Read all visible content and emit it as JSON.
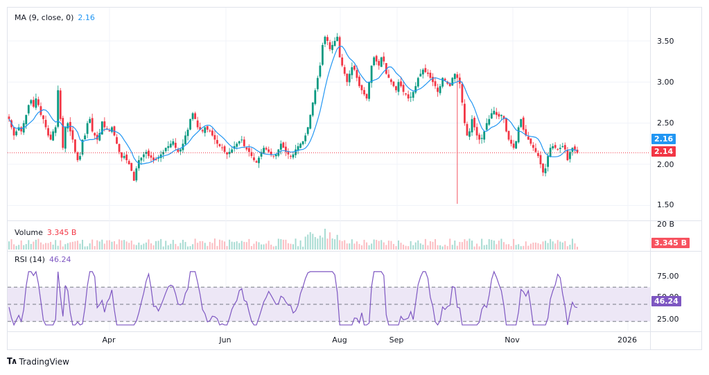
{
  "legend": {
    "ma_label": "MA (9, close, 0)",
    "ma_value": "2.16",
    "volume_label": "Volume",
    "volume_value": "3.345 B",
    "rsi_label": "RSI (14)",
    "rsi_value": "46.24"
  },
  "price_axis": {
    "ticks": [
      "3.50",
      "3.00",
      "2.50",
      "2.00",
      "1.50"
    ],
    "ma_tag": "2.16",
    "last_price_tag": "2.14"
  },
  "volume_axis": {
    "tick": "20 B",
    "volume_tag": "3.345 B"
  },
  "rsi_axis": {
    "ticks": [
      "75.00",
      "50.00",
      "25.00"
    ],
    "rsi_tag": "46.24"
  },
  "time_axis": {
    "labels": [
      "Apr",
      "Jun",
      "Aug",
      "Sep",
      "Nov",
      "2026"
    ]
  },
  "branding": {
    "logo_text": "TradingView"
  },
  "colors": {
    "up": "#089981",
    "down": "#f23645",
    "ma": "#2196f3",
    "rsi": "#7e57c2",
    "rsi_band": "#ede7f6",
    "last_price_line": "#f23645",
    "volume_up": "#a7dbd2",
    "volume_down": "#fbbcc1"
  },
  "chart_data": [
    {
      "type": "candlestick",
      "title": "Price with MA (9, close, 0)",
      "ylim": [
        1.35,
        3.75
      ],
      "y_ticks": [
        1.5,
        2.0,
        2.5,
        3.0,
        3.5
      ],
      "x_labels": [
        "Apr",
        "Jun",
        "Aug",
        "Sep",
        "Nov",
        "2026"
      ],
      "last_price": 2.14,
      "ma_last": 2.16,
      "close_series": [
        2.55,
        2.45,
        2.35,
        2.4,
        2.45,
        2.4,
        2.5,
        2.6,
        2.72,
        2.78,
        2.7,
        2.8,
        2.72,
        2.6,
        2.55,
        2.45,
        2.35,
        2.3,
        2.4,
        2.45,
        2.9,
        2.55,
        2.2,
        2.45,
        2.5,
        2.4,
        2.3,
        2.15,
        2.05,
        2.1,
        2.3,
        2.35,
        2.5,
        2.55,
        2.4,
        2.35,
        2.3,
        2.38,
        2.52,
        2.45,
        2.42,
        2.4,
        2.45,
        2.35,
        2.25,
        2.15,
        2.08,
        2.1,
        2.05,
        2.0,
        1.92,
        1.8,
        1.95,
        2.05,
        2.08,
        2.12,
        2.15,
        2.1,
        2.08,
        2.05,
        2.05,
        2.08,
        2.12,
        2.15,
        2.2,
        2.22,
        2.25,
        2.28,
        2.2,
        2.15,
        2.18,
        2.25,
        2.35,
        2.42,
        2.55,
        2.62,
        2.55,
        2.45,
        2.42,
        2.4,
        2.45,
        2.42,
        2.4,
        2.35,
        2.3,
        2.25,
        2.22,
        2.2,
        2.15,
        2.12,
        2.15,
        2.18,
        2.22,
        2.25,
        2.28,
        2.3,
        2.22,
        2.18,
        2.15,
        2.1,
        2.05,
        2.02,
        2.08,
        2.15,
        2.2,
        2.18,
        2.15,
        2.12,
        2.1,
        2.12,
        2.18,
        2.25,
        2.2,
        2.15,
        2.12,
        2.1,
        2.12,
        2.18,
        2.22,
        2.25,
        2.28,
        2.35,
        2.45,
        2.6,
        2.75,
        2.9,
        3.05,
        3.2,
        3.45,
        3.55,
        3.5,
        3.4,
        3.45,
        3.5,
        3.55,
        3.3,
        3.2,
        3.1,
        3.0,
        3.1,
        3.18,
        3.15,
        3.05,
        2.95,
        2.9,
        2.85,
        2.8,
        3.0,
        3.2,
        3.3,
        3.25,
        3.2,
        3.3,
        3.25,
        3.1,
        3.05,
        3.0,
        2.95,
        2.9,
        3.0,
        2.95,
        2.88,
        2.85,
        2.8,
        2.82,
        2.88,
        2.95,
        3.05,
        3.1,
        3.15,
        3.12,
        3.1,
        3.05,
        3.0,
        2.95,
        2.88,
        2.95,
        3.05,
        3.02,
        2.98,
        2.95,
        3.05,
        3.1,
        3.05,
        2.98,
        2.75,
        2.5,
        2.35,
        2.4,
        2.55,
        2.45,
        2.35,
        2.3,
        2.32,
        2.4,
        2.5,
        2.55,
        2.62,
        2.65,
        2.6,
        2.58,
        2.6,
        2.55,
        2.4,
        2.3,
        2.25,
        2.2,
        2.28,
        2.45,
        2.55,
        2.42,
        2.35,
        2.3,
        2.25,
        2.2,
        2.15,
        2.1,
        2.0,
        1.9,
        1.95,
        2.1,
        2.2,
        2.22,
        2.2,
        2.18,
        2.2,
        2.22,
        2.18,
        2.05,
        2.15,
        2.2,
        2.18,
        2.14
      ]
    },
    {
      "type": "bar",
      "title": "Volume",
      "last_value": "3.345 B",
      "y_ticks": [
        "20 B"
      ]
    },
    {
      "type": "line",
      "title": "RSI (14)",
      "ylim": [
        0,
        100
      ],
      "y_ticks": [
        25,
        50,
        75
      ],
      "band": [
        30,
        70
      ],
      "last_value": 46.24
    }
  ]
}
